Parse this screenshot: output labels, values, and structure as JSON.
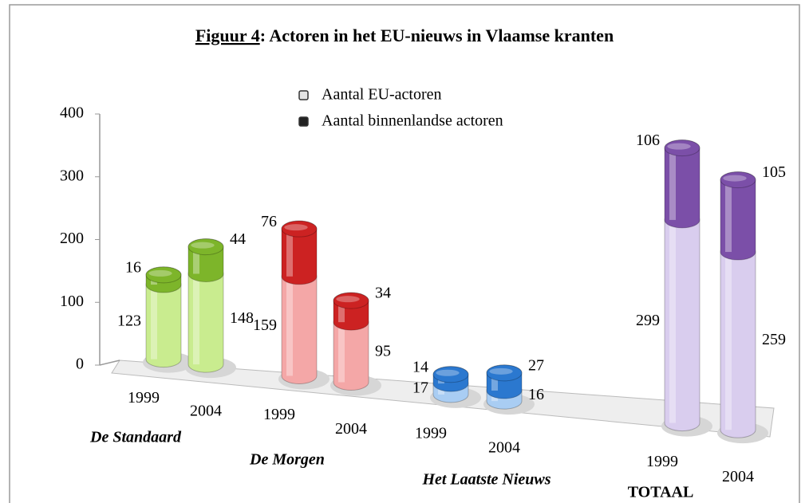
{
  "chart_data": {
    "type": "cylinder_stacked",
    "title": [
      "Figuur 4",
      ": Actoren in het EU-nieuws in Vlaamse kranten"
    ],
    "groups": [
      "De Standaard",
      "De Morgen",
      "Het Laatste Nieuws",
      "TOTAAL"
    ],
    "categories": [
      "1999",
      "2004",
      "1999",
      "2004",
      "1999",
      "2004",
      "1999",
      "2004"
    ],
    "series": [
      {
        "name": "Aantal EU-actoren",
        "color": "#e4e4e4",
        "colors": [
          "#c9ec8f",
          "#c9ec8f",
          "#f4a7a7",
          "#f4a7a7",
          "#a9cdf3",
          "#a9cdf3",
          "#d9cdee",
          "#d9cdee"
        ],
        "values": [
          123,
          148,
          159,
          95,
          17,
          16,
          299,
          259
        ]
      },
      {
        "name": "Aantal binnenlandse actoren",
        "color": "#222222",
        "colors": [
          "#7db52a",
          "#7db52a",
          "#cc2222",
          "#cc2222",
          "#2b78cf",
          "#2b78cf",
          "#7b4fa8",
          "#7b4fa8"
        ],
        "values": [
          16,
          44,
          76,
          34,
          14,
          27,
          106,
          105
        ]
      }
    ],
    "ylim": [
      0,
      400
    ],
    "yticks": [
      0,
      100,
      200,
      300,
      400
    ]
  }
}
